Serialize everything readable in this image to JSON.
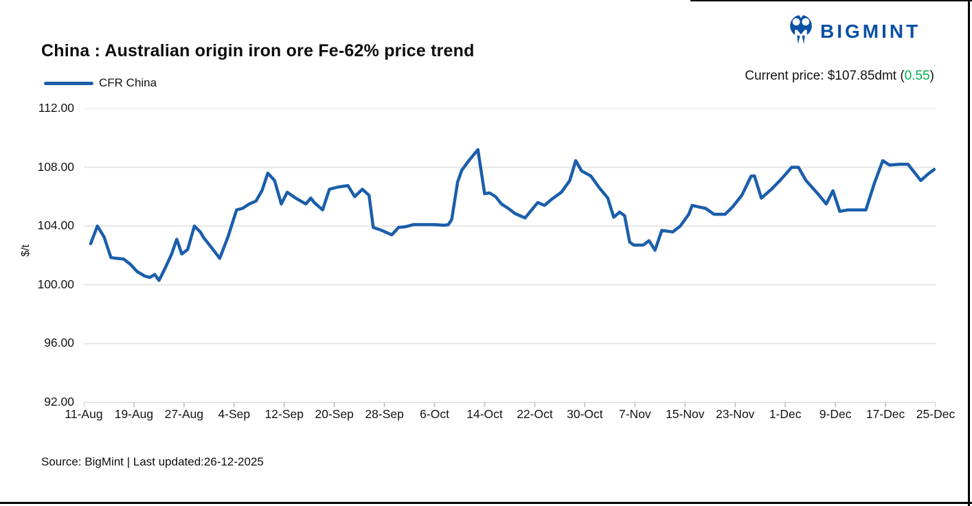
{
  "header": {
    "title": "China : Australian origin iron ore Fe-62% price trend",
    "logo_text": "BIGMINT",
    "price_prefix": "Current price: $107.85dmt (",
    "price_change": "0.55",
    "price_suffix": ")"
  },
  "legend": {
    "series_label": "CFR China"
  },
  "footer": {
    "source_text": "Source: BigMint | Last updated:26-12-2025"
  },
  "colors": {
    "line": "#1b5eab",
    "logo": "#0b50a4",
    "green": "#00b050",
    "grid": "#e6e6e6",
    "tick": "#c9c9c9",
    "text": "#141414"
  },
  "chart_data": {
    "type": "line",
    "title": "China : Australian origin iron ore Fe-62% price trend",
    "series_name": "CFR China",
    "ylabel": "$/t",
    "ylim": [
      92,
      112
    ],
    "ytick_step": 4,
    "yticks": [
      "112.00",
      "108.00",
      "104.00",
      "100.00",
      "96.00",
      "92.00"
    ],
    "xticks": [
      "11-Aug",
      "19-Aug",
      "27-Aug",
      "4-Sep",
      "12-Sep",
      "20-Sep",
      "28-Sep",
      "6-Oct",
      "14-Oct",
      "22-Oct",
      "30-Oct",
      "7-Nov",
      "15-Nov",
      "23-Nov",
      "1-Dec",
      "9-Dec",
      "17-Dec",
      "25-Dec"
    ],
    "grid": "horizontal",
    "legend_position": "top-left",
    "current_price": 107.85,
    "current_change": 0.55,
    "points": [
      [
        0.0,
        102.8
      ],
      [
        0.008,
        104.0
      ],
      [
        0.016,
        103.25
      ],
      [
        0.024,
        101.85
      ],
      [
        0.031,
        101.8
      ],
      [
        0.039,
        101.75
      ],
      [
        0.047,
        101.4
      ],
      [
        0.055,
        100.9
      ],
      [
        0.064,
        100.6
      ],
      [
        0.07,
        100.5
      ],
      [
        0.076,
        100.7
      ],
      [
        0.081,
        100.3
      ],
      [
        0.088,
        101.1
      ],
      [
        0.096,
        102.1
      ],
      [
        0.102,
        103.1
      ],
      [
        0.108,
        102.1
      ],
      [
        0.115,
        102.4
      ],
      [
        0.123,
        104.0
      ],
      [
        0.13,
        103.6
      ],
      [
        0.134,
        103.2
      ],
      [
        0.145,
        102.4
      ],
      [
        0.153,
        101.8
      ],
      [
        0.163,
        103.3
      ],
      [
        0.173,
        105.1
      ],
      [
        0.18,
        105.2
      ],
      [
        0.188,
        105.5
      ],
      [
        0.196,
        105.7
      ],
      [
        0.203,
        106.4
      ],
      [
        0.21,
        107.6
      ],
      [
        0.218,
        107.1
      ],
      [
        0.226,
        105.5
      ],
      [
        0.233,
        106.3
      ],
      [
        0.243,
        105.9
      ],
      [
        0.255,
        105.5
      ],
      [
        0.261,
        105.9
      ],
      [
        0.265,
        105.6
      ],
      [
        0.275,
        105.1
      ],
      [
        0.283,
        106.5
      ],
      [
        0.293,
        106.65
      ],
      [
        0.305,
        106.75
      ],
      [
        0.313,
        106.0
      ],
      [
        0.322,
        106.5
      ],
      [
        0.33,
        106.1
      ],
      [
        0.335,
        103.9
      ],
      [
        0.343,
        103.75
      ],
      [
        0.357,
        103.4
      ],
      [
        0.365,
        103.9
      ],
      [
        0.373,
        103.95
      ],
      [
        0.383,
        104.1
      ],
      [
        0.393,
        104.1
      ],
      [
        0.406,
        104.1
      ],
      [
        0.419,
        104.05
      ],
      [
        0.424,
        104.1
      ],
      [
        0.428,
        104.45
      ],
      [
        0.435,
        107.0
      ],
      [
        0.44,
        107.8
      ],
      [
        0.449,
        108.5
      ],
      [
        0.459,
        109.2
      ],
      [
        0.467,
        106.2
      ],
      [
        0.473,
        106.25
      ],
      [
        0.48,
        106.0
      ],
      [
        0.487,
        105.5
      ],
      [
        0.495,
        105.2
      ],
      [
        0.503,
        104.85
      ],
      [
        0.515,
        104.55
      ],
      [
        0.53,
        105.6
      ],
      [
        0.538,
        105.4
      ],
      [
        0.546,
        105.8
      ],
      [
        0.558,
        106.3
      ],
      [
        0.568,
        107.1
      ],
      [
        0.575,
        108.45
      ],
      [
        0.582,
        107.75
      ],
      [
        0.593,
        107.4
      ],
      [
        0.603,
        106.6
      ],
      [
        0.613,
        105.9
      ],
      [
        0.62,
        104.6
      ],
      [
        0.627,
        104.95
      ],
      [
        0.633,
        104.7
      ],
      [
        0.639,
        102.9
      ],
      [
        0.644,
        102.7
      ],
      [
        0.655,
        102.7
      ],
      [
        0.662,
        103.0
      ],
      [
        0.669,
        102.35
      ],
      [
        0.677,
        103.7
      ],
      [
        0.69,
        103.6
      ],
      [
        0.699,
        104.0
      ],
      [
        0.709,
        104.8
      ],
      [
        0.713,
        105.4
      ],
      [
        0.721,
        105.3
      ],
      [
        0.729,
        105.2
      ],
      [
        0.739,
        104.8
      ],
      [
        0.752,
        104.8
      ],
      [
        0.761,
        105.3
      ],
      [
        0.772,
        106.1
      ],
      [
        0.783,
        107.4
      ],
      [
        0.787,
        107.4
      ],
      [
        0.795,
        105.9
      ],
      [
        0.807,
        106.5
      ],
      [
        0.818,
        107.15
      ],
      [
        0.831,
        108.0
      ],
      [
        0.839,
        108.0
      ],
      [
        0.848,
        107.1
      ],
      [
        0.862,
        106.2
      ],
      [
        0.872,
        105.5
      ],
      [
        0.88,
        106.4
      ],
      [
        0.888,
        105.0
      ],
      [
        0.898,
        105.1
      ],
      [
        0.91,
        105.1
      ],
      [
        0.919,
        105.1
      ],
      [
        0.929,
        106.9
      ],
      [
        0.939,
        108.45
      ],
      [
        0.947,
        108.15
      ],
      [
        0.959,
        108.2
      ],
      [
        0.969,
        108.2
      ],
      [
        0.984,
        107.1
      ],
      [
        0.993,
        107.55
      ],
      [
        1.0,
        107.85
      ]
    ]
  }
}
